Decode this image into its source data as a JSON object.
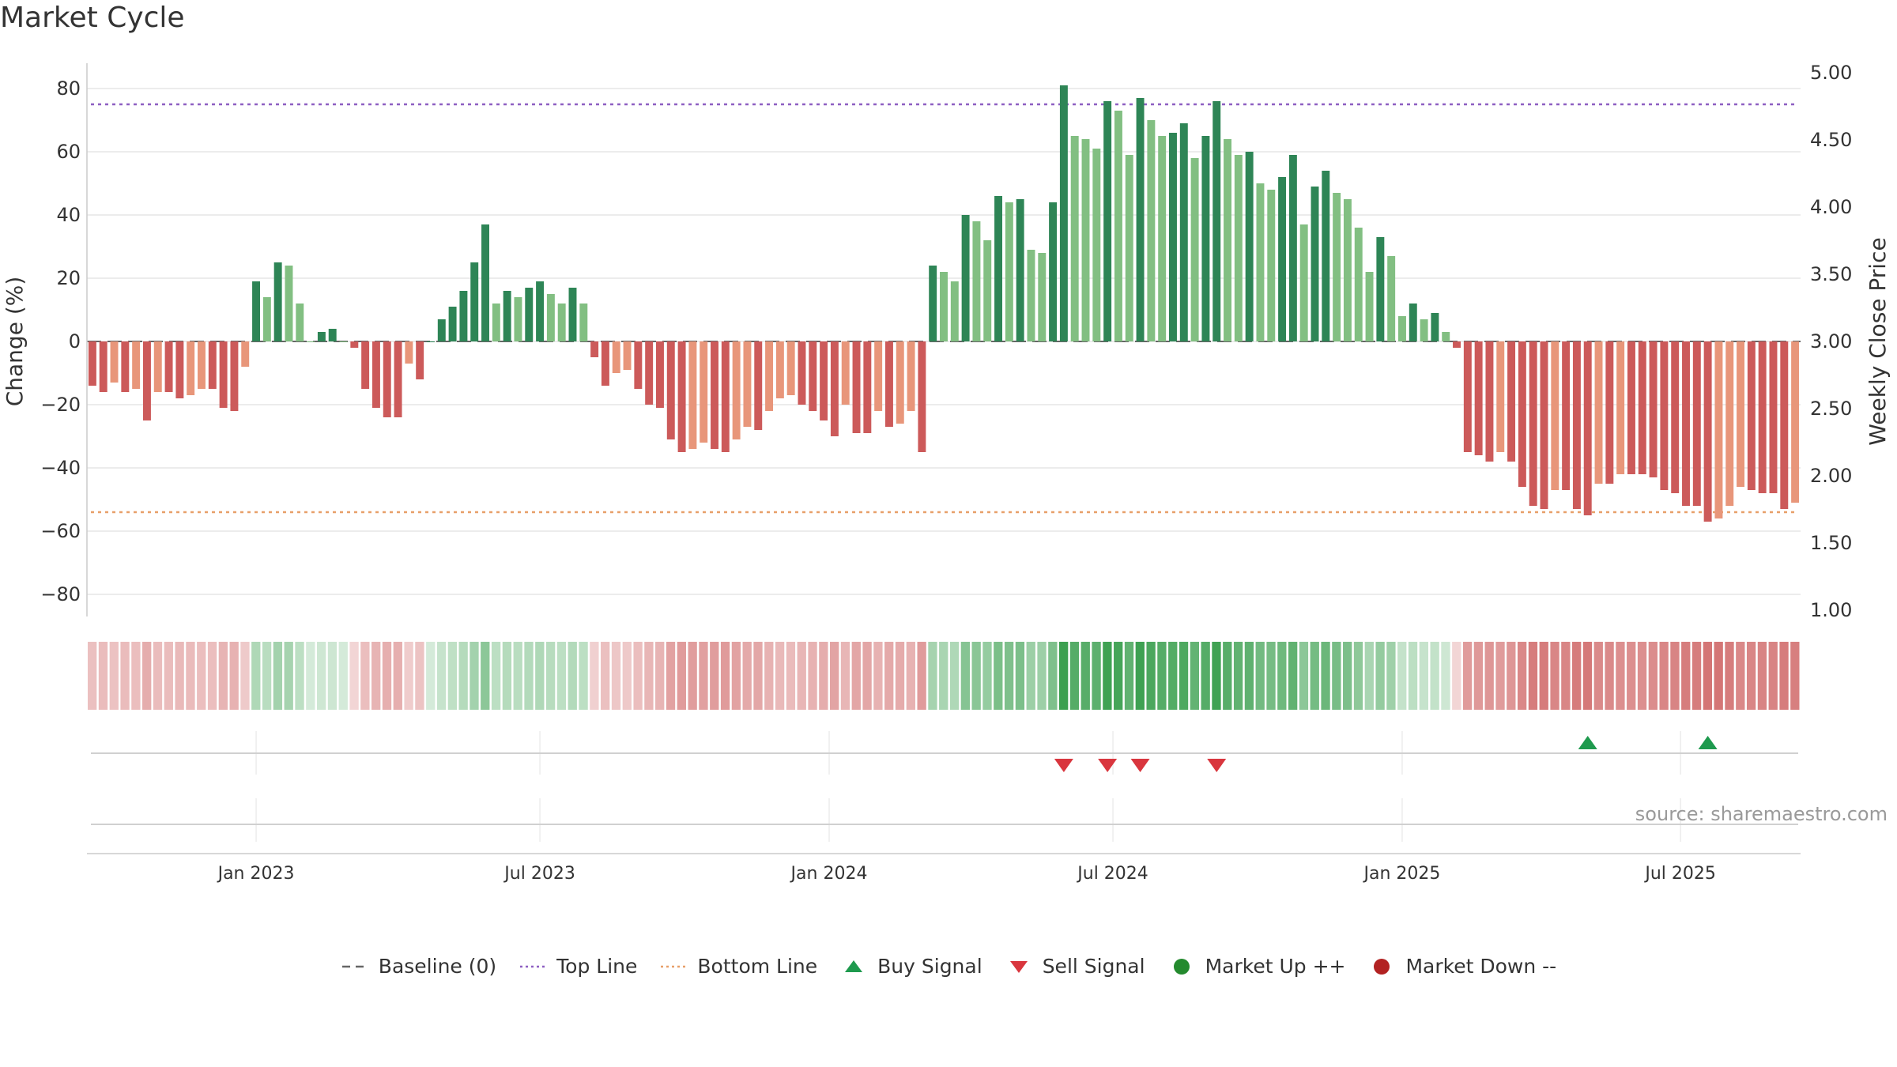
{
  "chart_data": {
    "type": "bar",
    "title": "Market Cycle",
    "ylabel": "Change (%)",
    "y2label": "Weekly Close Price",
    "ylim": [
      -88,
      88
    ],
    "y2lim": [
      1.0,
      5.1
    ],
    "yticks": [
      80,
      60,
      40,
      20,
      0,
      -20,
      -40,
      -60,
      -80
    ],
    "ytick_labels": [
      "80",
      "60",
      "40",
      "20",
      "0",
      "−20",
      "−40",
      "−60",
      "−80"
    ],
    "y2ticks": [
      5.0,
      4.5,
      4.0,
      3.5,
      3.0,
      2.5,
      2.0,
      1.5,
      1.0
    ],
    "y2tick_labels": [
      "5.00",
      "4.50",
      "4.00",
      "3.50",
      "3.00",
      "2.50",
      "2.00",
      "1.50",
      "1.00"
    ],
    "top_line": 75,
    "bottom_line": -54,
    "baseline": 0,
    "x_ticks": [
      {
        "label": "Jan 2023",
        "index": 15
      },
      {
        "label": "Jul 2023",
        "index": 41
      },
      {
        "label": "Jan 2024",
        "index": 67.5
      },
      {
        "label": "Jul 2024",
        "index": 93.5
      },
      {
        "label": "Jan 2025",
        "index": 120
      },
      {
        "label": "Jul 2025",
        "index": 145.5
      }
    ],
    "values": [
      -14,
      -16,
      -13,
      -16,
      -15,
      -25,
      -16,
      -16,
      -18,
      -17,
      -15,
      -15,
      -21,
      -22,
      -8,
      19,
      14,
      25,
      24,
      12,
      0,
      3,
      4,
      0,
      -2,
      -15,
      -21,
      -24,
      -24,
      -7,
      -12,
      0,
      7,
      11,
      16,
      25,
      37,
      12,
      16,
      14,
      17,
      19,
      15,
      12,
      17,
      12,
      -5,
      -14,
      -10,
      -9,
      -15,
      -20,
      -21,
      -31,
      -35,
      -34,
      -32,
      -34,
      -35,
      -31,
      -27,
      -28,
      -22,
      -18,
      -17,
      -20,
      -22,
      -25,
      -30,
      -20,
      -29,
      -29,
      -22,
      -27,
      -26,
      -22,
      -35,
      24,
      22,
      19,
      40,
      38,
      32,
      46,
      44,
      45,
      29,
      28,
      44,
      81,
      65,
      64,
      61,
      76,
      73,
      59,
      77,
      70,
      65,
      66,
      69,
      58,
      65,
      76,
      64,
      59,
      60,
      50,
      48,
      52,
      59,
      37,
      49,
      54,
      47,
      45,
      36,
      22,
      33,
      27,
      8,
      12,
      7,
      9,
      3,
      -2,
      -35,
      -36,
      -38,
      -35,
      -38,
      -46,
      -52,
      -53,
      -47,
      -47,
      -53,
      -55,
      -45,
      -45,
      -42,
      -42,
      -42,
      -43,
      -47,
      -48,
      -52,
      -52,
      -57,
      -56,
      -52,
      -46,
      -47,
      -48,
      -48,
      -53,
      -51
    ],
    "legend": [
      {
        "label": "Baseline (0)",
        "symbol": "dash",
        "color": "#666666"
      },
      {
        "label": "Top Line",
        "symbol": "dotted",
        "color": "#8e5fc2"
      },
      {
        "label": "Bottom Line",
        "symbol": "dotted",
        "color": "#e8a06a"
      },
      {
        "label": "Buy Signal",
        "symbol": "triangle-up",
        "color": "#1e9a4e"
      },
      {
        "label": "Sell Signal",
        "symbol": "triangle-down",
        "color": "#d9363e"
      },
      {
        "label": "Market Up ++",
        "symbol": "circle",
        "color": "#248a2e"
      },
      {
        "label": "Market Down --",
        "symbol": "circle",
        "color": "#b22222"
      }
    ],
    "buy_signals": [
      137,
      148
    ],
    "sell_signals": [
      89,
      93,
      96,
      103
    ],
    "colors": {
      "up_strong": "#2e8556",
      "up_weak": "#82bf82",
      "down_strong": "#cc5a5a",
      "down_weak": "#e8967a",
      "top_line": "#8e5fc2",
      "bottom_line": "#e8a06a",
      "baseline": "#666666"
    }
  },
  "source": "source: sharemaestro.com"
}
